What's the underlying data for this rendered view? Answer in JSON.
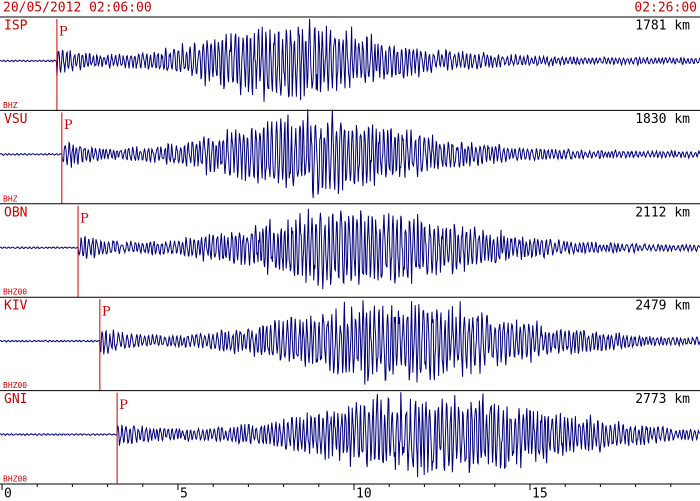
{
  "chart_data": {
    "type": "seismogram",
    "start_label": "20/05/2012 02:06:00",
    "end_label": "02:26:00",
    "xlim": [
      0,
      20
    ],
    "xticks": [
      0,
      5,
      10,
      15
    ],
    "phase_label": "P",
    "color": "#00007a",
    "traces": [
      {
        "station": "ISP",
        "channel": "BHZ",
        "distance": "1781 km",
        "p_time": 1.56
      },
      {
        "station": "VSU",
        "channel": "BHZ",
        "distance": "1830 km",
        "p_time": 1.7
      },
      {
        "station": "OBN",
        "channel": "BHZ00",
        "distance": "2112 km",
        "p_time": 2.16
      },
      {
        "station": "KIV",
        "channel": "BHZ00",
        "distance": "2479 km",
        "p_time": 2.78
      },
      {
        "station": "GNI",
        "channel": "BHZ00",
        "distance": "2773 km",
        "p_time": 3.27
      }
    ]
  }
}
